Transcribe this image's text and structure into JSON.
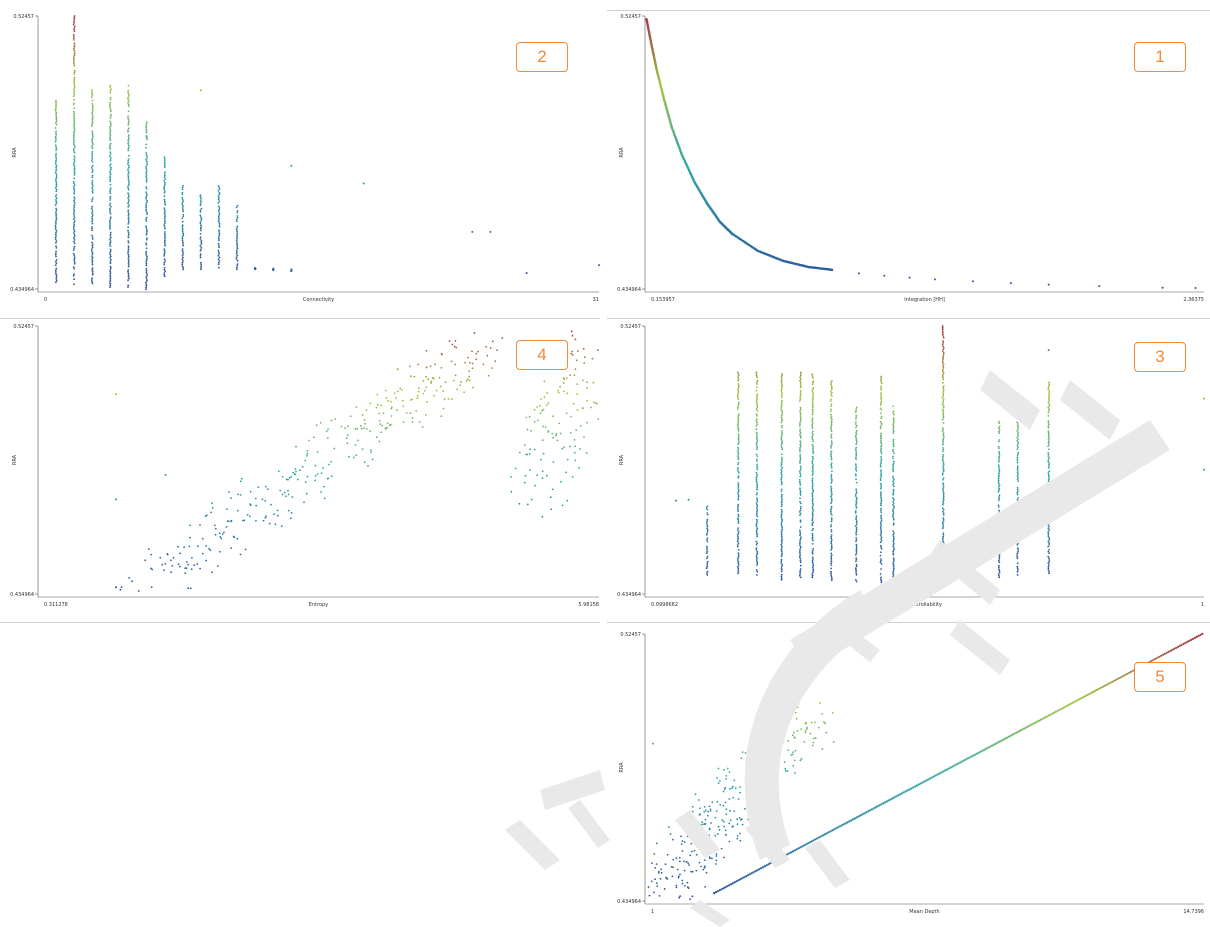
{
  "chart_data": [
    {
      "id": "p2",
      "badge": "2",
      "type": "scatter",
      "xlabel": "Connectivity",
      "ylabel": "RRA",
      "x_ticks": [
        "0",
        "31"
      ],
      "y_ticks": [
        "0.52457",
        "0.434964"
      ],
      "xlim": [
        0,
        31
      ],
      "ylim": [
        0.434964,
        0.52457
      ],
      "series": [
        {
          "kind": "columns",
          "columns": [
            {
              "x": 1,
              "ymin": 0.4372,
              "ymax": 0.4968
            },
            {
              "x": 2,
              "ymin": 0.4365,
              "ymax": 0.52457
            },
            {
              "x": 3,
              "ymin": 0.4368,
              "ymax": 0.5002
            },
            {
              "x": 4,
              "ymin": 0.4356,
              "ymax": 0.5017
            },
            {
              "x": 5,
              "ymin": 0.4356,
              "ymax": 0.5017
            },
            {
              "x": 6,
              "ymin": 0.4349,
              "ymax": 0.4897
            },
            {
              "x": 7,
              "ymin": 0.4391,
              "ymax": 0.4783
            },
            {
              "x": 8,
              "ymin": 0.4408,
              "ymax": 0.4694
            },
            {
              "x": 9,
              "ymin": 0.4414,
              "ymax": 0.4658
            },
            {
              "x": 10,
              "ymin": 0.4414,
              "ymax": 0.4694
            },
            {
              "x": 11,
              "ymin": 0.4414,
              "ymax": 0.4623
            },
            {
              "x": 12,
              "ymin": 0.4414,
              "ymax": 0.442
            },
            {
              "x": 13,
              "ymin": 0.4411,
              "ymax": 0.4417
            },
            {
              "x": 14,
              "ymin": 0.4408,
              "ymax": 0.4414
            }
          ]
        },
        {
          "kind": "points",
          "points": [
            [
              9,
              0.5002
            ],
            [
              6,
              0.4848
            ],
            [
              14,
              0.4754
            ],
            [
              18,
              0.4696
            ],
            [
              24,
              0.4537
            ],
            [
              25,
              0.4537
            ],
            [
              27,
              0.4402
            ],
            [
              31,
              0.4428
            ]
          ]
        }
      ]
    },
    {
      "id": "p1",
      "badge": "1",
      "type": "scatter",
      "xlabel": "Integration [HH]",
      "ylabel": "RRA",
      "x_ticks": [
        "0.153957",
        "2.36375"
      ],
      "y_ticks": [
        "0.52457",
        "0.434964"
      ],
      "xlim": [
        0.153957,
        2.36375
      ],
      "ylim": [
        0.434964,
        0.52457
      ],
      "series": [
        {
          "kind": "curve",
          "points": [
            [
              0.16,
              0.5235
            ],
            [
              0.18,
              0.515
            ],
            [
              0.2,
              0.507
            ],
            [
              0.23,
              0.497
            ],
            [
              0.26,
              0.488
            ],
            [
              0.3,
              0.479
            ],
            [
              0.35,
              0.47
            ],
            [
              0.4,
              0.463
            ],
            [
              0.45,
              0.457
            ],
            [
              0.5,
              0.453
            ],
            [
              0.6,
              0.4475
            ],
            [
              0.7,
              0.4442
            ],
            [
              0.8,
              0.4422
            ],
            [
              0.9,
              0.4412
            ]
          ]
        },
        {
          "kind": "points",
          "points": [
            [
              1.0,
              0.4401
            ],
            [
              1.1,
              0.4393
            ],
            [
              1.2,
              0.4387
            ],
            [
              1.3,
              0.4381
            ],
            [
              1.45,
              0.4375
            ],
            [
              1.6,
              0.4369
            ],
            [
              1.75,
              0.4364
            ],
            [
              1.95,
              0.4359
            ],
            [
              2.2,
              0.4354
            ],
            [
              2.33,
              0.4353
            ]
          ]
        }
      ]
    },
    {
      "id": "p4",
      "badge": "4",
      "type": "scatter",
      "xlabel": "Entropy",
      "ylabel": "RRA",
      "x_ticks": [
        "0.311278",
        "5.98158"
      ],
      "y_ticks": [
        "0.52457",
        "0.434964"
      ],
      "xlim": [
        0.311278,
        5.98158
      ],
      "ylim": [
        0.434964,
        0.52457
      ],
      "series": [
        {
          "kind": "cloud",
          "name": "main",
          "center_from": [
            1.4,
            0.438
          ],
          "center_to": [
            4.8,
            0.518
          ],
          "count": 320
        },
        {
          "kind": "cloud",
          "name": "cluster",
          "center_from": [
            5.3,
            0.4666
          ],
          "center_to": [
            5.95,
            0.5236
          ],
          "count": 140
        },
        {
          "kind": "points",
          "points": [
            [
              1.1,
              0.5018
            ],
            [
              1.1,
              0.4666
            ],
            [
              1.6,
              0.4748
            ],
            [
              1.1,
              0.4372
            ]
          ]
        }
      ]
    },
    {
      "id": "p3",
      "badge": "3",
      "type": "scatter",
      "xlabel": "Controllability",
      "ylabel": "RRA",
      "x_ticks": [
        "0.0998662",
        "1"
      ],
      "y_ticks": [
        "0.52457",
        "0.434964"
      ],
      "xlim": [
        0.0998662,
        1
      ],
      "ylim": [
        0.434964,
        0.52457
      ],
      "series": [
        {
          "kind": "columns",
          "columns": [
            {
              "x": 0.2,
              "ymin": 0.4413,
              "ymax": 0.4643
            },
            {
              "x": 0.25,
              "ymin": 0.4413,
              "ymax": 0.5091
            },
            {
              "x": 0.28,
              "ymin": 0.4413,
              "ymax": 0.5091
            },
            {
              "x": 0.32,
              "ymin": 0.4397,
              "ymax": 0.5091
            },
            {
              "x": 0.35,
              "ymin": 0.4405,
              "ymax": 0.5091
            },
            {
              "x": 0.37,
              "ymin": 0.4405,
              "ymax": 0.5084
            },
            {
              "x": 0.4,
              "ymin": 0.4396,
              "ymax": 0.5062
            },
            {
              "x": 0.44,
              "ymin": 0.4386,
              "ymax": 0.4974
            },
            {
              "x": 0.48,
              "ymin": 0.4366,
              "ymax": 0.5077
            },
            {
              "x": 0.5,
              "ymin": 0.4386,
              "ymax": 0.4977
            },
            {
              "x": 0.58,
              "ymin": 0.4413,
              "ymax": 0.52457
            },
            {
              "x": 0.67,
              "ymin": 0.4405,
              "ymax": 0.4932
            },
            {
              "x": 0.7,
              "ymin": 0.4413,
              "ymax": 0.4974
            },
            {
              "x": 0.75,
              "ymin": 0.4413,
              "ymax": 0.5057
            }
          ]
        },
        {
          "kind": "points",
          "points": [
            [
              0.75,
              0.5165
            ],
            [
              1.0,
              0.5003
            ],
            [
              1.0,
              0.4765
            ],
            [
              0.15,
              0.4662
            ],
            [
              0.17,
              0.4665
            ]
          ]
        }
      ]
    },
    {
      "id": "p5",
      "badge": "5",
      "type": "scatter",
      "xlabel": "Mean Depth",
      "ylabel": "RRA",
      "x_ticks": [
        "1",
        "14.7396"
      ],
      "y_ticks": [
        "0.52457",
        "0.434964"
      ],
      "xlim": [
        1,
        14.7396
      ],
      "ylim": [
        0.434964,
        0.52457
      ],
      "series": [
        {
          "kind": "line",
          "points": [
            [
              2.7,
              0.4376
            ],
            [
              14.7,
              0.5246
            ]
          ]
        },
        {
          "kind": "cloud",
          "name": "upper",
          "center_from": [
            1.3,
            0.4376
          ],
          "center_to": [
            5.0,
            0.4963
          ],
          "count": 320
        },
        {
          "kind": "points",
          "points": [
            [
              1.2,
              0.4878
            ],
            [
              5.4,
              0.495
            ],
            [
              5.4,
              0.5142
            ]
          ]
        }
      ]
    }
  ],
  "colors": {
    "low": "#2c4f9c",
    "mid": "#2aa4a8",
    "high_mid": "#9fc33a",
    "high": "#a8324a",
    "badge": "#f08a3a",
    "watermark": "#e8e8e8"
  }
}
